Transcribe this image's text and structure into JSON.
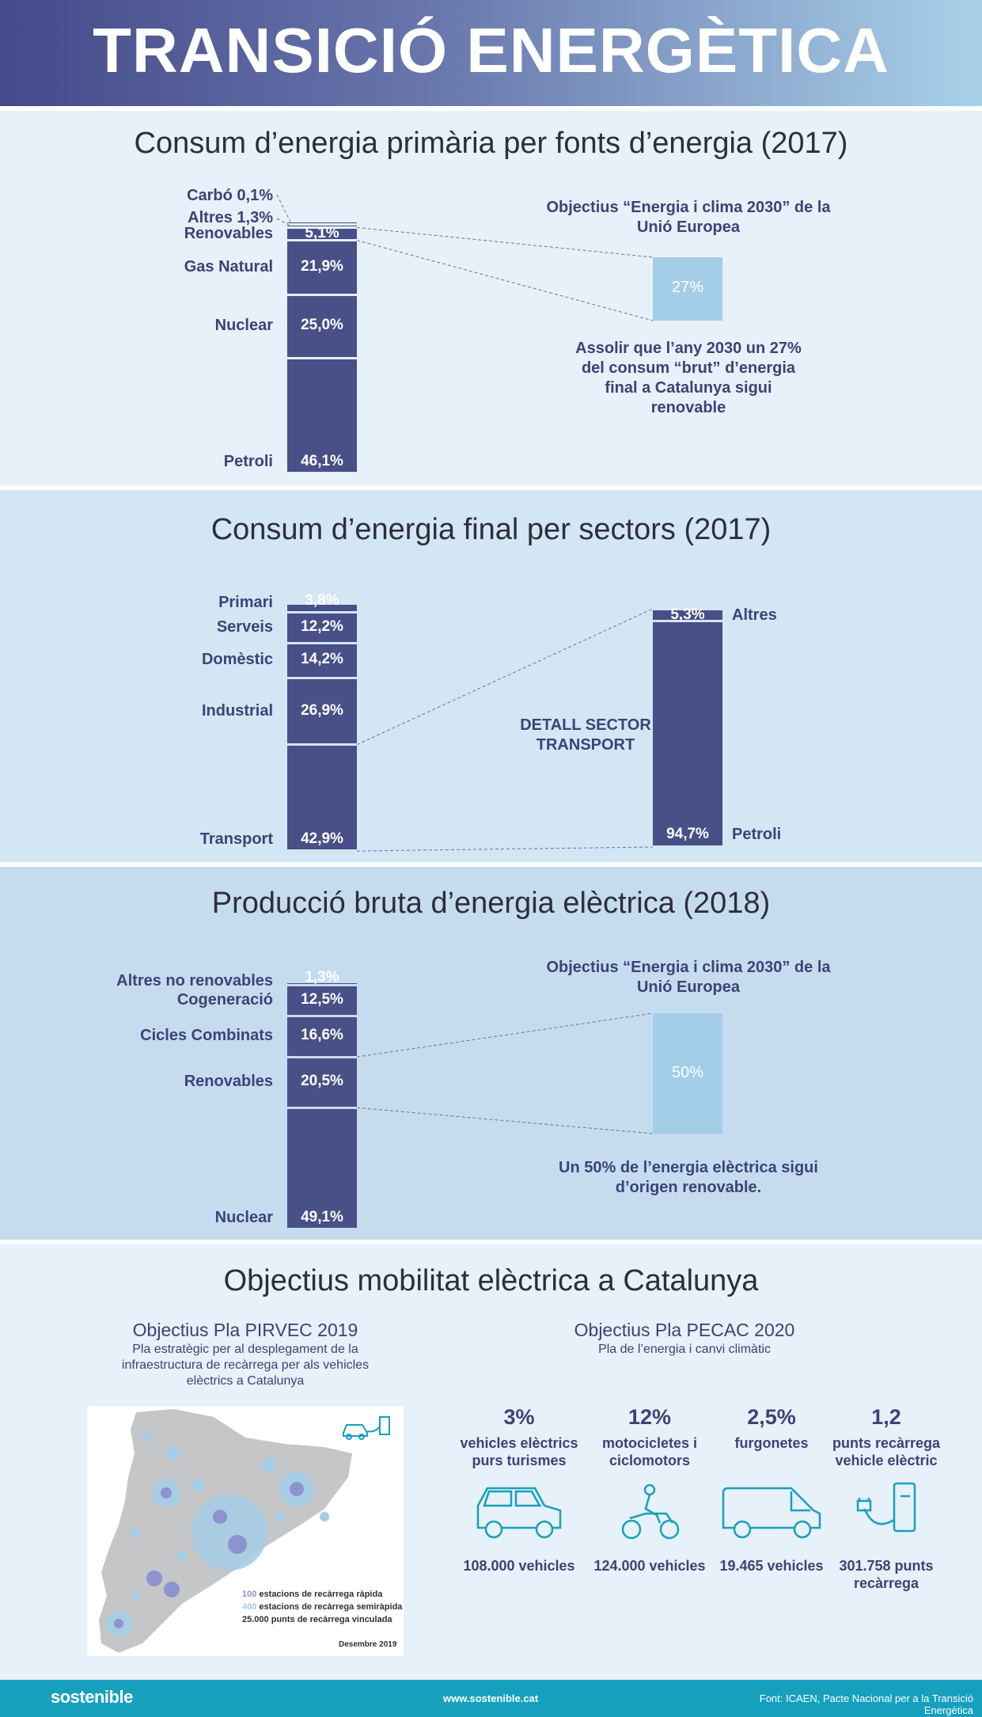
{
  "header": {
    "title": "TRANSICIÓ ENERGÈTICA"
  },
  "sections": [
    {
      "title": "Consum d’energia primària per fonts d’energia  (2017)"
    },
    {
      "title": "Consum d’energia final per sectors (2017)"
    },
    {
      "title": "Producció bruta d’energia elèctrica (2018)"
    },
    {
      "title": "Objectius mobilitat elèctrica a Catalunya"
    }
  ],
  "primary": {
    "target_title": "Objectius “Energia i clima 2030” de la Unió Europea",
    "target_value": "27%",
    "target_desc": "Assolir que l’any 2030 un 27% del consum “brut” d’energia final a Catalunya sigui renovable"
  },
  "transport": {
    "detail_label": "DETALL SECTOR TRANSPORT"
  },
  "electric": {
    "target_title": "Objectius “Energia i clima 2030” de la Unió Europea",
    "target_value": "50%",
    "target_desc": "Un 50% de l’energia elèctrica sigui d’origen renovable."
  },
  "mobility": {
    "pirvec_title": "Objectius Pla PIRVEC 2019",
    "pirvec_desc": "Pla estratègic per al desplegament de la infraestructura de recàrrega per als vehicles elèctrics a Catalunya",
    "pecac_title": "Objectius Pla PECAC 2020",
    "pecac_desc": "Pla de l’energia i canvi climàtic",
    "map_legend": [
      {
        "num": "100",
        "text": " estacions de recàrrega ràpida"
      },
      {
        "num": "400",
        "text": " estacions de recàrrega semiràpida"
      },
      {
        "num": "",
        "text": "25.000 punts de recàrrega vinculada"
      }
    ],
    "map_date": "Desembre 2019",
    "stats": [
      {
        "pct": "3%",
        "desc": "vehicles elèctrics purs turismes",
        "count": "108.000 vehicles",
        "icon": "car-icon"
      },
      {
        "pct": "12%",
        "desc": "motocicletes i ciclomotors",
        "count": "124.000 vehicles",
        "icon": "motorcycle-icon"
      },
      {
        "pct": "2,5%",
        "desc": "furgonetes",
        "count": "19.465 vehicles",
        "icon": "van-icon"
      },
      {
        "pct": "1,2",
        "desc": "punts recàrrega vehicle elèctric",
        "count": "301.758 punts recàrrega",
        "icon": "charger-icon"
      }
    ]
  },
  "footer": {
    "brand": "sostenible",
    "url": "www.sostenible.cat",
    "source": "Font: ICAEN, Pacte Nacional per a la Transició Energètica"
  },
  "colors": {
    "bar": "#494f87",
    "target": "#a4cde8",
    "header_start": "#44498a",
    "header_end": "#a8d1e9",
    "footer": "#17a0bd"
  },
  "chart_data": [
    {
      "type": "bar",
      "stacked": true,
      "title": "Consum d’energia primària per fonts d’energia  (2017)",
      "categories": [
        "Petroli",
        "Nuclear",
        "Gas Natural",
        "Renovables",
        "Altres",
        "Carbó"
      ],
      "values": [
        46.1,
        25.0,
        21.9,
        5.1,
        1.3,
        0.1
      ],
      "labels": [
        "46,1%",
        "25,0%",
        "21,9%",
        "5,1%",
        "1,3%",
        "0,1%"
      ],
      "side_labels": [
        "Petroli",
        "Nuclear",
        "Gas Natural",
        "Renovables",
        "Altres 1,3%",
        "Carbó 0,1%"
      ]
    },
    {
      "type": "bar",
      "stacked": true,
      "title": "Consum d’energia final per sectors (2017)",
      "categories": [
        "Transport",
        "Industrial",
        "Domèstic",
        "Serveis",
        "Primari"
      ],
      "values": [
        42.9,
        26.9,
        14.2,
        12.2,
        3.8
      ],
      "labels": [
        "42,9%",
        "26,9%",
        "14,2%",
        "12,2%",
        "3,8%"
      ]
    },
    {
      "type": "bar",
      "stacked": true,
      "title": "DETALL SECTOR TRANSPORT",
      "categories": [
        "Petroli",
        "Altres"
      ],
      "values": [
        94.7,
        5.3
      ],
      "labels": [
        "94,7%",
        "5,3%"
      ]
    },
    {
      "type": "bar",
      "stacked": true,
      "title": "Producció bruta d’energia elèctrica (2018)",
      "categories": [
        "Nuclear",
        "Renovables",
        "Cicles Combinats",
        "Cogeneració",
        "Altres no renovables"
      ],
      "values": [
        49.1,
        20.5,
        16.6,
        12.5,
        1.3
      ],
      "labels": [
        "49,1%",
        "20,5%",
        "16,6%",
        "12,5%",
        "1,3%"
      ]
    }
  ]
}
